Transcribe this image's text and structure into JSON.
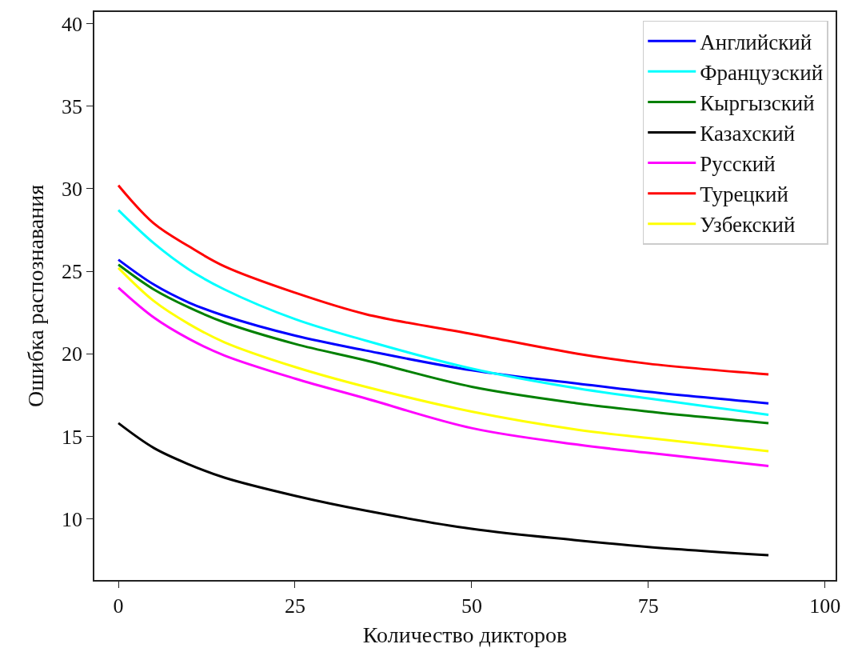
{
  "chart_data": {
    "type": "line",
    "xlabel": "Количество дикторов",
    "ylabel": "Ошибка распознавания",
    "x": [
      0,
      5,
      10,
      15,
      25,
      35,
      50,
      65,
      75,
      92
    ],
    "xlim": [
      -3.4,
      101.5
    ],
    "xticks": [
      0,
      25,
      50,
      75,
      100
    ],
    "ylim": [
      6.3,
      40.7
    ],
    "yticks": [
      10,
      15,
      20,
      25,
      30,
      35,
      40
    ],
    "grid": false,
    "legend": "top right",
    "marker": "none",
    "line_style": "solid",
    "series": [
      {
        "name": "Английский",
        "color": "#0000ff",
        "values": [
          25.7,
          24.2,
          23.1,
          22.3,
          21.1,
          20.2,
          19.0,
          18.2,
          17.7,
          17.0
        ]
      },
      {
        "name": "Французский",
        "color": "#00ffff",
        "values": [
          28.7,
          26.7,
          25.1,
          23.9,
          22.1,
          20.8,
          19.1,
          17.9,
          17.3,
          16.3
        ]
      },
      {
        "name": "Кыргызский",
        "color": "#008000",
        "values": [
          25.4,
          23.9,
          22.8,
          21.9,
          20.6,
          19.6,
          18.0,
          17.0,
          16.5,
          15.8
        ]
      },
      {
        "name": "Казахский",
        "color": "#000000",
        "values": [
          15.8,
          14.3,
          13.3,
          12.5,
          11.4,
          10.5,
          9.4,
          8.7,
          8.3,
          7.8
        ]
      },
      {
        "name": "Русский",
        "color": "#ff00ff",
        "values": [
          24.0,
          22.2,
          20.9,
          19.9,
          18.5,
          17.3,
          15.5,
          14.5,
          14.0,
          13.2
        ]
      },
      {
        "name": "Турецкий",
        "color": "#ff0000",
        "values": [
          30.2,
          27.9,
          26.5,
          25.3,
          23.7,
          22.4,
          21.2,
          20.0,
          19.4,
          18.75
        ]
      },
      {
        "name": "Узбекский",
        "color": "#ffff00",
        "values": [
          25.2,
          23.2,
          21.8,
          20.7,
          19.2,
          18.0,
          16.5,
          15.4,
          14.9,
          14.1
        ]
      }
    ]
  }
}
